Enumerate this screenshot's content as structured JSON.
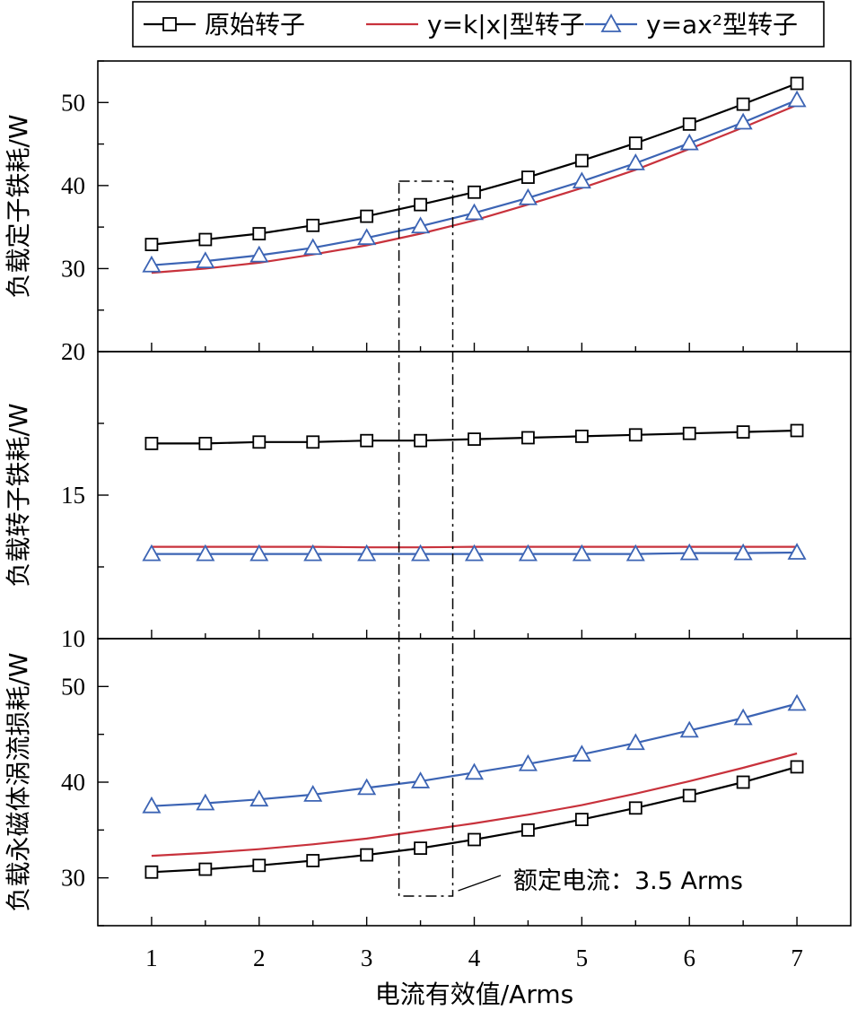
{
  "chart_data": {
    "type": "line",
    "x": [
      1,
      1.5,
      2,
      2.5,
      3,
      3.5,
      4,
      4.5,
      5,
      5.5,
      6,
      6.5,
      7
    ],
    "xlabel": "电流有效值/Arms",
    "xlim": [
      0.5,
      7.5
    ],
    "xticks": [
      1,
      2,
      3,
      4,
      5,
      6,
      7
    ],
    "legend": {
      "placement": "top",
      "entries": [
        {
          "label": "原始转子",
          "color": "#000000",
          "marker": "square"
        },
        {
          "label": "y=k|x|型转子",
          "color": "#c8323c",
          "marker": "none"
        },
        {
          "label": "y=ax²型转子",
          "color": "#3c64b4",
          "marker": "triangle"
        }
      ]
    },
    "panels": [
      {
        "ylabel": "负载定子铁耗/W",
        "ylim": [
          20,
          55
        ],
        "yticks": [
          30,
          40,
          50
        ],
        "ytick_labels": [
          "30",
          "40",
          "50"
        ],
        "series": [
          {
            "name": "原始转子",
            "values": [
              32.9,
              33.5,
              34.2,
              35.2,
              36.3,
              37.7,
              39.2,
              41.0,
              43.0,
              45.1,
              47.4,
              49.8,
              52.3
            ]
          },
          {
            "name": "y=k|x|型转子",
            "values": [
              29.5,
              30.0,
              30.7,
              31.7,
              32.8,
              34.2,
              35.8,
              37.7,
              39.7,
              41.9,
              44.4,
              47.0,
              49.7
            ]
          },
          {
            "name": "y=ax²型转子",
            "values": [
              30.4,
              30.9,
              31.6,
              32.5,
              33.7,
              35.1,
              36.7,
              38.5,
              40.5,
              42.7,
              45.1,
              47.6,
              50.3
            ]
          }
        ]
      },
      {
        "ylabel": "负载转子铁耗/W",
        "ylim": [
          10,
          20
        ],
        "yticks": [
          10,
          15,
          20
        ],
        "ytick_labels": [
          "10",
          "15",
          "20"
        ],
        "series": [
          {
            "name": "原始转子",
            "values": [
              16.8,
              16.8,
              16.85,
              16.85,
              16.9,
              16.9,
              16.95,
              17.0,
              17.05,
              17.1,
              17.15,
              17.2,
              17.25
            ]
          },
          {
            "name": "y=k|x|型转子",
            "values": [
              13.2,
              13.2,
              13.2,
              13.2,
              13.18,
              13.18,
              13.2,
              13.2,
              13.2,
              13.2,
              13.2,
              13.2,
              13.2
            ]
          },
          {
            "name": "y=ax²型转子",
            "values": [
              12.95,
              12.95,
              12.95,
              12.95,
              12.95,
              12.95,
              12.95,
              12.95,
              12.95,
              12.95,
              12.98,
              12.98,
              13.0
            ]
          }
        ]
      },
      {
        "ylabel": "负载永磁体涡流损耗/W",
        "ylim": [
          25,
          55
        ],
        "yticks": [
          30,
          40,
          50
        ],
        "ytick_labels": [
          "30",
          "40",
          "50"
        ],
        "series": [
          {
            "name": "原始转子",
            "values": [
              30.6,
              30.9,
              31.3,
              31.8,
              32.4,
              33.1,
              34.0,
              35.0,
              36.1,
              37.3,
              38.6,
              40.0,
              41.6
            ]
          },
          {
            "name": "y=k|x|型转子",
            "values": [
              32.3,
              32.6,
              33.0,
              33.5,
              34.1,
              34.9,
              35.7,
              36.6,
              37.6,
              38.8,
              40.1,
              41.5,
              43.0
            ]
          },
          {
            "name": "y=ax²型转子",
            "values": [
              37.5,
              37.8,
              38.2,
              38.7,
              39.4,
              40.1,
              41.0,
              41.9,
              42.9,
              44.1,
              45.4,
              46.7,
              48.2
            ]
          }
        ]
      }
    ],
    "annotation": {
      "text": "额定电流：3.5 Arms",
      "box_x_range": [
        3.3,
        3.8
      ]
    }
  }
}
